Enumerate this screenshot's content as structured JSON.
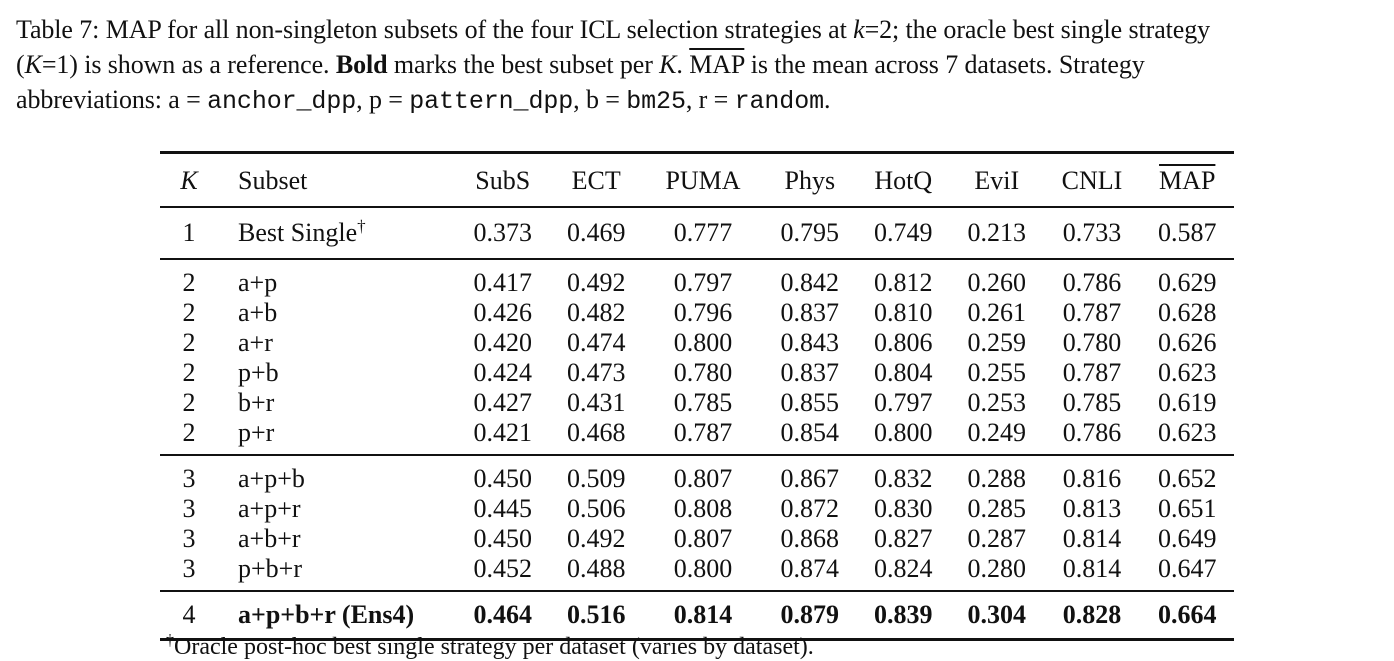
{
  "caption": {
    "line1_pre": "Table 7: MAP for all non-singleton subsets of the four ICL selection strategies at ",
    "line1_k": "k",
    "line1_eq": "=2; the oracle best single strategy",
    "line2_open": "(",
    "line2_K": "K",
    "line2_eq": "=1) is shown as a reference. ",
    "line2_bold": "Bold",
    "line2_mid": " marks the best subset per ",
    "line2_K2": "K",
    "line2_dot": ". ",
    "line2_map": "MAP",
    "line2_end": " is the mean across 7 datasets. Strategy",
    "line3_pre": "abbreviations: a = ",
    "abbr_a": "anchor_dpp",
    "sep_p": ", p = ",
    "abbr_p": "pattern_dpp",
    "sep_b": ", b = ",
    "abbr_b": "bm25",
    "sep_r": ", r = ",
    "abbr_r": "random",
    "line3_end": "."
  },
  "table": {
    "headers": {
      "k": "K",
      "subset": "Subset",
      "cols": [
        "SubS",
        "ECT",
        "PUMA",
        "Phys",
        "HotQ",
        "EviI",
        "CNLI"
      ],
      "map": "MAP"
    },
    "single": {
      "k": "1",
      "subset": "Best Single",
      "subset_mark": "†",
      "values": [
        "0.373",
        "0.469",
        "0.777",
        "0.795",
        "0.749",
        "0.213",
        "0.733",
        "0.587"
      ]
    },
    "k2_rows": [
      {
        "k": "2",
        "subset": "a+p",
        "values": [
          "0.417",
          "0.492",
          "0.797",
          "0.842",
          "0.812",
          "0.260",
          "0.786",
          "0.629"
        ]
      },
      {
        "k": "2",
        "subset": "a+b",
        "values": [
          "0.426",
          "0.482",
          "0.796",
          "0.837",
          "0.810",
          "0.261",
          "0.787",
          "0.628"
        ]
      },
      {
        "k": "2",
        "subset": "a+r",
        "values": [
          "0.420",
          "0.474",
          "0.800",
          "0.843",
          "0.806",
          "0.259",
          "0.780",
          "0.626"
        ]
      },
      {
        "k": "2",
        "subset": "p+b",
        "values": [
          "0.424",
          "0.473",
          "0.780",
          "0.837",
          "0.804",
          "0.255",
          "0.787",
          "0.623"
        ]
      },
      {
        "k": "2",
        "subset": "b+r",
        "values": [
          "0.427",
          "0.431",
          "0.785",
          "0.855",
          "0.797",
          "0.253",
          "0.785",
          "0.619"
        ]
      },
      {
        "k": "2",
        "subset": "p+r",
        "values": [
          "0.421",
          "0.468",
          "0.787",
          "0.854",
          "0.800",
          "0.249",
          "0.786",
          "0.623"
        ]
      }
    ],
    "k3_rows": [
      {
        "k": "3",
        "subset": "a+p+b",
        "values": [
          "0.450",
          "0.509",
          "0.807",
          "0.867",
          "0.832",
          "0.288",
          "0.816",
          "0.652"
        ]
      },
      {
        "k": "3",
        "subset": "a+p+r",
        "values": [
          "0.445",
          "0.506",
          "0.808",
          "0.872",
          "0.830",
          "0.285",
          "0.813",
          "0.651"
        ]
      },
      {
        "k": "3",
        "subset": "a+b+r",
        "values": [
          "0.450",
          "0.492",
          "0.807",
          "0.868",
          "0.827",
          "0.287",
          "0.814",
          "0.649"
        ]
      },
      {
        "k": "3",
        "subset": "p+b+r",
        "values": [
          "0.452",
          "0.488",
          "0.800",
          "0.874",
          "0.824",
          "0.280",
          "0.814",
          "0.647"
        ]
      }
    ],
    "final": {
      "k": "4",
      "subset": "a+p+b+r (Ens4)",
      "values": [
        "0.464",
        "0.516",
        "0.814",
        "0.879",
        "0.839",
        "0.304",
        "0.828",
        "0.664"
      ]
    }
  },
  "footnote": {
    "mark": "†",
    "text": "Oracle post-hoc best single strategy per dataset (varies by dataset)."
  }
}
